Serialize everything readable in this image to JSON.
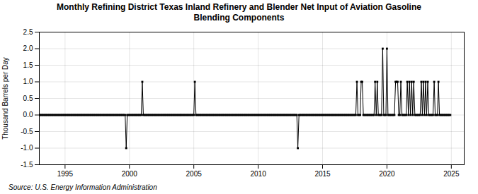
{
  "chart_data": {
    "type": "line",
    "title": "Monthly Refining District Texas Inland Refinery and Blender Net Input of Aviation Gasoline\nBlending Components",
    "ylabel": "Thousand Barrels per Day",
    "source": "Source: U.S. Energy Information Administration",
    "marker": "square",
    "grid": true,
    "xlim": [
      1993,
      2026
    ],
    "ylim": [
      -1.5,
      2.5
    ],
    "xticks": [
      1995,
      2000,
      2005,
      2010,
      2015,
      2020,
      2025
    ],
    "yticks": [
      -1.5,
      {
        "value": -1.0,
        "label": "-1.0"
      },
      -0.5,
      {
        "value": 0.0,
        "label": "0.0"
      },
      0.5,
      {
        "value": 1.0,
        "label": "1.0"
      },
      1.5,
      {
        "value": 2.0,
        "label": "2.0"
      },
      2.5
    ],
    "x": [
      1993.0,
      1993.08,
      1993.17,
      1993.25,
      1993.33,
      1993.42,
      1993.5,
      1993.58,
      1993.67,
      1993.75,
      1993.83,
      1993.92,
      1994.0,
      1994.08,
      1994.17,
      1994.25,
      1994.33,
      1994.42,
      1994.5,
      1994.58,
      1994.67,
      1994.75,
      1994.83,
      1994.92,
      1995.0,
      1995.08,
      1995.17,
      1995.25,
      1995.33,
      1995.42,
      1995.5,
      1995.58,
      1995.67,
      1995.75,
      1995.83,
      1995.92,
      1996.0,
      1996.08,
      1996.17,
      1996.25,
      1996.33,
      1996.42,
      1996.5,
      1996.58,
      1996.67,
      1996.75,
      1996.83,
      1996.92,
      1997.0,
      1997.08,
      1997.17,
      1997.25,
      1997.33,
      1997.42,
      1997.5,
      1997.58,
      1997.67,
      1997.75,
      1997.83,
      1997.92,
      1998.0,
      1998.08,
      1998.17,
      1998.25,
      1998.33,
      1998.42,
      1998.5,
      1998.58,
      1998.67,
      1998.75,
      1998.83,
      1998.92,
      1999.0,
      1999.08,
      1999.17,
      1999.25,
      1999.33,
      1999.42,
      1999.5,
      1999.58,
      1999.67,
      1999.75,
      1999.83,
      1999.92,
      2000.0,
      2000.08,
      2000.17,
      2000.25,
      2000.33,
      2000.42,
      2000.5,
      2000.58,
      2000.67,
      2000.75,
      2000.83,
      2000.92,
      2001.0,
      2001.08,
      2001.17,
      2001.25,
      2001.33,
      2001.42,
      2001.5,
      2001.58,
      2001.67,
      2001.75,
      2001.83,
      2001.92,
      2002.0,
      2002.08,
      2002.17,
      2002.25,
      2002.33,
      2002.42,
      2002.5,
      2002.58,
      2002.67,
      2002.75,
      2002.83,
      2002.92,
      2003.0,
      2003.08,
      2003.17,
      2003.25,
      2003.33,
      2003.42,
      2003.5,
      2003.58,
      2003.67,
      2003.75,
      2003.83,
      2003.92,
      2004.0,
      2004.08,
      2004.17,
      2004.25,
      2004.33,
      2004.42,
      2004.5,
      2004.58,
      2004.67,
      2004.75,
      2004.83,
      2004.92,
      2005.0,
      2005.08,
      2005.17,
      2005.25,
      2005.33,
      2005.42,
      2005.5,
      2005.58,
      2005.67,
      2005.75,
      2005.83,
      2005.92,
      2006.0,
      2006.08,
      2006.17,
      2006.25,
      2006.33,
      2006.42,
      2006.5,
      2006.58,
      2006.67,
      2006.75,
      2006.83,
      2006.92,
      2007.0,
      2007.08,
      2007.17,
      2007.25,
      2007.33,
      2007.42,
      2007.5,
      2007.58,
      2007.67,
      2007.75,
      2007.83,
      2007.92,
      2008.0,
      2008.08,
      2008.17,
      2008.25,
      2008.33,
      2008.42,
      2008.5,
      2008.58,
      2008.67,
      2008.75,
      2008.83,
      2008.92,
      2009.0,
      2009.08,
      2009.17,
      2009.25,
      2009.33,
      2009.42,
      2009.5,
      2009.58,
      2009.67,
      2009.75,
      2009.83,
      2009.92,
      2010.0,
      2010.08,
      2010.17,
      2010.25,
      2010.33,
      2010.42,
      2010.5,
      2010.58,
      2010.67,
      2010.75,
      2010.83,
      2010.92,
      2011.0,
      2011.08,
      2011.17,
      2011.25,
      2011.33,
      2011.42,
      2011.5,
      2011.58,
      2011.67,
      2011.75,
      2011.83,
      2011.92,
      2012.0,
      2012.08,
      2012.17,
      2012.25,
      2012.33,
      2012.42,
      2012.5,
      2012.58,
      2012.67,
      2012.75,
      2012.83,
      2012.92,
      2013.0,
      2013.08,
      2013.17,
      2013.25,
      2013.33,
      2013.42,
      2013.5,
      2013.58,
      2013.67,
      2013.75,
      2013.83,
      2013.92,
      2014.0,
      2014.08,
      2014.17,
      2014.25,
      2014.33,
      2014.42,
      2014.5,
      2014.58,
      2014.67,
      2014.75,
      2014.83,
      2014.92,
      2015.0,
      2015.08,
      2015.17,
      2015.25,
      2015.33,
      2015.42,
      2015.5,
      2015.58,
      2015.67,
      2015.75,
      2015.83,
      2015.92,
      2016.0,
      2016.08,
      2016.17,
      2016.25,
      2016.33,
      2016.42,
      2016.5,
      2016.58,
      2016.67,
      2016.75,
      2016.83,
      2016.92,
      2017.0,
      2017.08,
      2017.17,
      2017.25,
      2017.33,
      2017.42,
      2017.5,
      2017.58,
      2017.67,
      2017.75,
      2017.83,
      2017.92,
      2018.0,
      2018.08,
      2018.17,
      2018.25,
      2018.33,
      2018.42,
      2018.5,
      2018.58,
      2018.67,
      2018.75,
      2018.83,
      2018.92,
      2019.0,
      2019.08,
      2019.17,
      2019.25,
      2019.33,
      2019.42,
      2019.5,
      2019.58,
      2019.67,
      2019.75,
      2019.83,
      2019.92,
      2020.0,
      2020.08,
      2020.17,
      2020.25,
      2020.33,
      2020.42,
      2020.5,
      2020.58,
      2020.67,
      2020.75,
      2020.83,
      2020.92,
      2021.0,
      2021.08,
      2021.17,
      2021.25,
      2021.33,
      2021.42,
      2021.5,
      2021.58,
      2021.67,
      2021.75,
      2021.83,
      2021.92,
      2022.0,
      2022.08,
      2022.17,
      2022.25,
      2022.33,
      2022.42,
      2022.5,
      2022.58,
      2022.67,
      2022.75,
      2022.83,
      2022.92,
      2023.0,
      2023.08,
      2023.17,
      2023.25,
      2023.33,
      2023.42,
      2023.5,
      2023.58,
      2023.67,
      2023.75,
      2023.83,
      2023.92,
      2024.0,
      2024.08,
      2024.17,
      2024.25,
      2024.33,
      2024.42,
      2024.5,
      2024.58,
      2024.67,
      2024.75,
      2024.83,
      2024.92
    ],
    "values": [
      0,
      0,
      0,
      0,
      0,
      0,
      0,
      0,
      0,
      0,
      0,
      0,
      0,
      0,
      0,
      0,
      0,
      0,
      0,
      0,
      0,
      0,
      0,
      0,
      0,
      0,
      0,
      0,
      0,
      0,
      0,
      0,
      0,
      0,
      0,
      0,
      0,
      0,
      0,
      0,
      0,
      0,
      0,
      0,
      0,
      0,
      0,
      0,
      0,
      0,
      0,
      0,
      0,
      0,
      0,
      0,
      0,
      0,
      0,
      0,
      0,
      0,
      0,
      0,
      0,
      0,
      0,
      0,
      0,
      0,
      0,
      0,
      0,
      0,
      0,
      0,
      0,
      0,
      0,
      0,
      0,
      -1,
      0,
      0,
      0,
      0,
      0,
      0,
      0,
      0,
      0,
      0,
      0,
      0,
      0,
      0,
      1,
      0,
      0,
      0,
      0,
      0,
      0,
      0,
      0,
      0,
      0,
      0,
      0,
      0,
      0,
      0,
      0,
      0,
      0,
      0,
      0,
      0,
      0,
      0,
      0,
      0,
      0,
      0,
      0,
      0,
      0,
      0,
      0,
      0,
      0,
      0,
      0,
      0,
      0,
      0,
      0,
      0,
      0,
      0,
      0,
      0,
      0,
      0,
      0,
      1,
      0,
      0,
      0,
      0,
      0,
      0,
      0,
      0,
      0,
      0,
      0,
      0,
      0,
      0,
      0,
      0,
      0,
      0,
      0,
      0,
      0,
      0,
      0,
      0,
      0,
      0,
      0,
      0,
      0,
      0,
      0,
      0,
      0,
      0,
      0,
      0,
      0,
      0,
      0,
      0,
      0,
      0,
      0,
      0,
      0,
      0,
      0,
      0,
      0,
      0,
      0,
      0,
      0,
      0,
      0,
      0,
      0,
      0,
      0,
      0,
      0,
      0,
      0,
      0,
      0,
      0,
      0,
      0,
      0,
      0,
      0,
      0,
      0,
      0,
      0,
      0,
      0,
      0,
      0,
      0,
      0,
      0,
      0,
      0,
      0,
      0,
      0,
      0,
      0,
      0,
      0,
      0,
      0,
      0,
      0,
      -1,
      0,
      0,
      0,
      0,
      0,
      0,
      0,
      0,
      0,
      0,
      0,
      0,
      0,
      0,
      0,
      0,
      0,
      0,
      0,
      0,
      0,
      0,
      0,
      0,
      0,
      0,
      0,
      0,
      0,
      0,
      0,
      0,
      0,
      0,
      0,
      0,
      0,
      0,
      0,
      0,
      0,
      0,
      0,
      0,
      0,
      0,
      0,
      0,
      0,
      0,
      0,
      0,
      0,
      0,
      1,
      0,
      0,
      0,
      1,
      1,
      0,
      0,
      0,
      0,
      0,
      0,
      0,
      0,
      0,
      0,
      0,
      1,
      0,
      1,
      0,
      0,
      0,
      0,
      2,
      0,
      0,
      0,
      2,
      0,
      0,
      0,
      0,
      0,
      0,
      0,
      1,
      1,
      1,
      0,
      0,
      1,
      0,
      0,
      0,
      0,
      0,
      1,
      0,
      1,
      0,
      1,
      0,
      1,
      0,
      0,
      0,
      0,
      0,
      0,
      1,
      0,
      1,
      0,
      1,
      0,
      1,
      0,
      0,
      0,
      0,
      0,
      1,
      0,
      0,
      0,
      1,
      0,
      0,
      0,
      0,
      0,
      0,
      0,
      0,
      0,
      0,
      0
    ]
  }
}
